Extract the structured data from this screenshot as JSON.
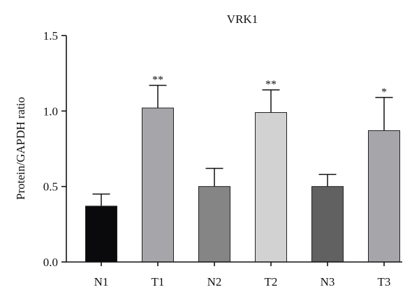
{
  "chart_data": {
    "type": "bar",
    "title": "VRK1",
    "xlabel": "",
    "ylabel": "Protein/GAPDH ratio",
    "ylim": [
      0,
      1.5
    ],
    "yticks": [
      0.0,
      0.5,
      1.0,
      1.5
    ],
    "ytick_labels": [
      "0.0",
      "0.5",
      "1.0",
      "1.5"
    ],
    "grid": false,
    "categories": [
      "N1",
      "T1",
      "N2",
      "T2",
      "N3",
      "T3"
    ],
    "values": [
      0.37,
      1.02,
      0.5,
      0.99,
      0.5,
      0.87
    ],
    "errors": [
      0.08,
      0.15,
      0.12,
      0.15,
      0.08,
      0.22
    ],
    "significance": [
      "",
      "**",
      "",
      "**",
      "",
      "*"
    ],
    "colors": [
      "#0a0a0c",
      "#a6a6aa",
      "#858585",
      "#d2d2d2",
      "#616161",
      "#a6a6aa"
    ]
  }
}
